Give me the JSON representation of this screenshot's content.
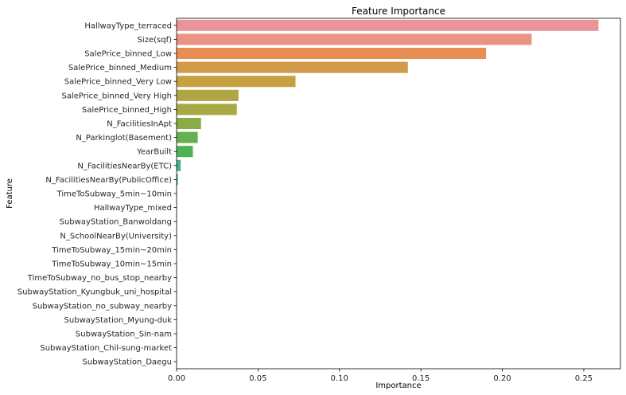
{
  "chart_data": {
    "type": "bar",
    "orientation": "horizontal",
    "title": "Feature Importance",
    "xlabel": "Importance",
    "ylabel": "Feature",
    "xlim": [
      0,
      0.2725
    ],
    "xticks": [
      0.0,
      0.05,
      0.1,
      0.15,
      0.2,
      0.25
    ],
    "xtick_labels": [
      "0.00",
      "0.05",
      "0.10",
      "0.15",
      "0.20",
      "0.25"
    ],
    "grid": false,
    "categories": [
      "HallwayType_terraced",
      "Size(sqf)",
      "SalePrice_binned_Low",
      "SalePrice_binned_Medium",
      "SalePrice_binned_Very Low",
      "SalePrice_binned_Very High",
      "SalePrice_binned_High",
      "N_FacilitiesInApt",
      "N_Parkinglot(Basement)",
      "YearBuilt",
      "N_FacilitiesNearBy(ETC)",
      "N_FacilitiesNearBy(PublicOffice)",
      "TimeToSubway_5min~10min",
      "HallwayType_mixed",
      "SubwayStation_Banwoldang",
      "N_SchoolNearBy(University)",
      "TimeToSubway_15min~20min",
      "TimeToSubway_10min~15min",
      "TimeToSubway_no_bus_stop_nearby",
      "SubwayStation_Kyungbuk_uni_hospital",
      "SubwayStation_no_subway_nearby",
      "SubwayStation_Myung-duk",
      "SubwayStation_Sin-nam",
      "SubwayStation_Chil-sung-market",
      "SubwayStation_Daegu"
    ],
    "values": [
      0.259,
      0.218,
      0.19,
      0.142,
      0.073,
      0.038,
      0.037,
      0.015,
      0.013,
      0.01,
      0.0025,
      0.0008,
      0.0002,
      0.0001,
      0.0001,
      0.0001,
      0.0001,
      0.0,
      0.0,
      0.0,
      0.0,
      0.0,
      0.0,
      0.0,
      0.0
    ],
    "colors": [
      "#ea9499",
      "#ea9383",
      "#e88d53",
      "#d19a4b",
      "#c7a040",
      "#b0a444",
      "#a8a845",
      "#8aab46",
      "#68b04f",
      "#4fb153",
      "#45b08a",
      "#47afa0",
      "#49aeae",
      "#4aaebd",
      "#4db0d1",
      "#7ab3e2",
      "#98a8e5",
      "#a79be6",
      "#b08ce5",
      "#c286e2",
      "#d285dc",
      "#de85d2",
      "#e688c1",
      "#e98bb0",
      "#ea8ea3"
    ]
  }
}
